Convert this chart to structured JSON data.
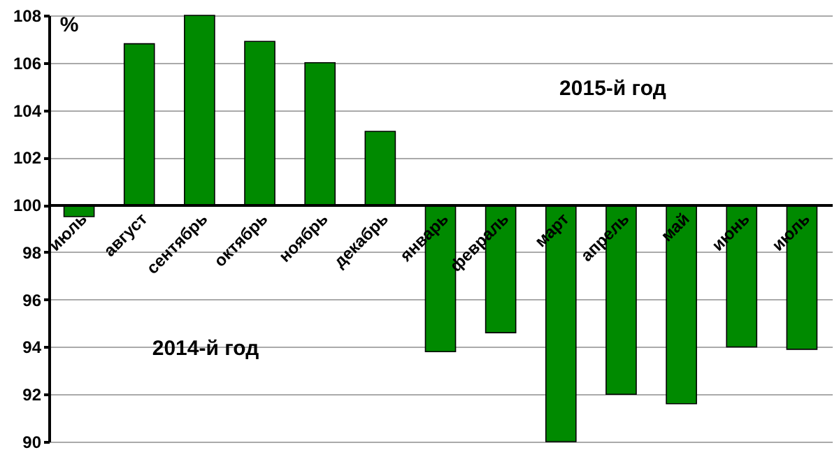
{
  "chart_data": {
    "type": "bar",
    "ylabel": "%",
    "categories": [
      "июль",
      "август",
      "сентябрь",
      "октябрь",
      "ноябрь",
      "декабрь",
      "январь",
      "февраль",
      "март",
      "апрель",
      "май",
      "июнь",
      "июль"
    ],
    "base": [
      100,
      100,
      100,
      100,
      100,
      100,
      100,
      100,
      100,
      100,
      100,
      100,
      100
    ],
    "values": [
      -0.5,
      6.8,
      8,
      6.9,
      6.0,
      3.1,
      -6.2,
      -5.4,
      -10,
      -8.0,
      -8.4,
      -6.0,
      -6.1
    ],
    "color": "#008a00",
    "ylim": [
      90,
      108
    ],
    "yticks": [
      90,
      92,
      94,
      96,
      98,
      100,
      102,
      104,
      106,
      108
    ],
    "grid": "y",
    "annotations": [
      "2015-й год",
      "2014-й год"
    ]
  }
}
